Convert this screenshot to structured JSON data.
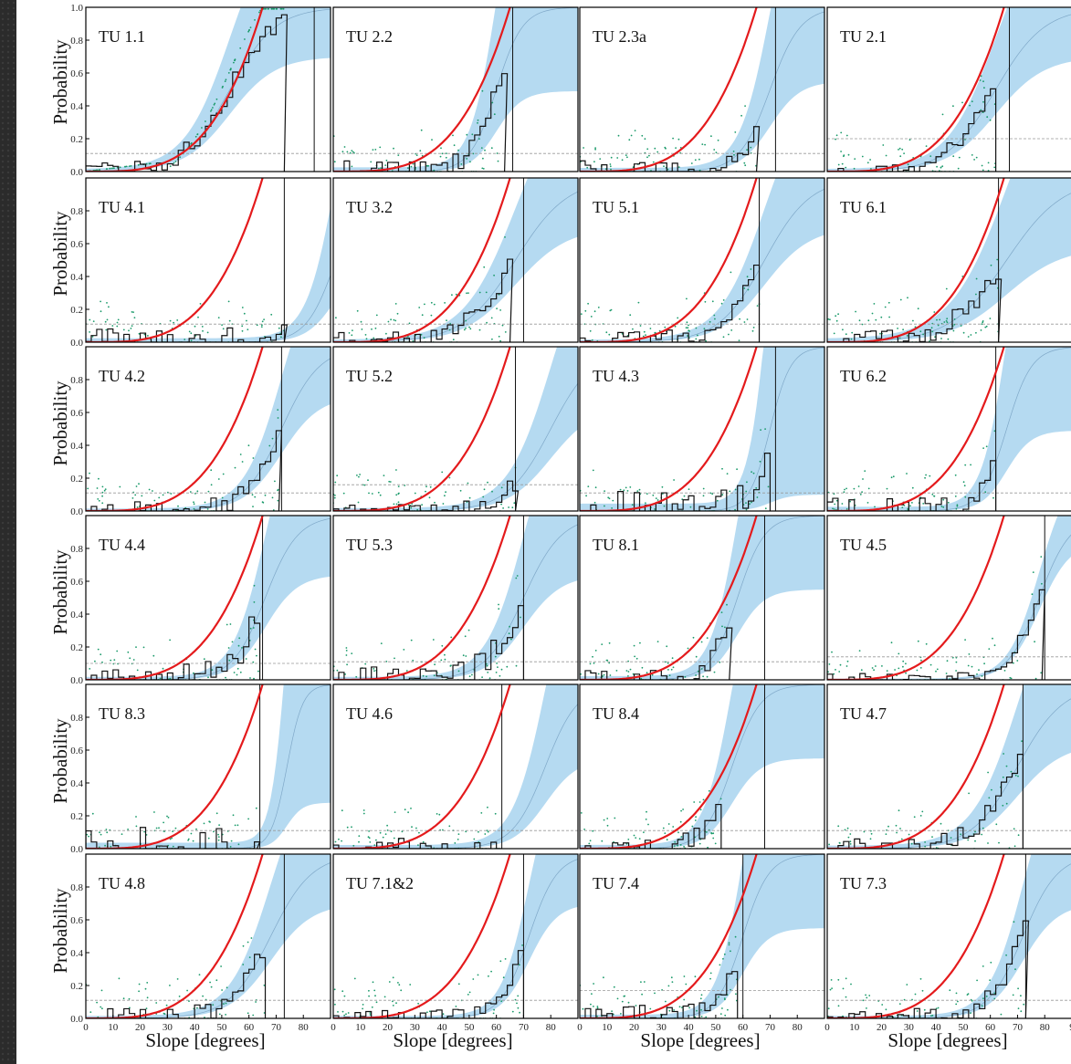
{
  "figure": {
    "ylabel": "Probability",
    "xlabel": "Slope [degrees]"
  },
  "colors": {
    "model_curve": "#e41a1c",
    "band": "#a8d4ef",
    "band_center": "#7fa8c8",
    "histogram": "#111111",
    "points": "#1a9a6a",
    "threshold": "#999999"
  },
  "chart_data": [
    {
      "type": "line",
      "title": "TU 1.1",
      "xlim": [
        0,
        90
      ],
      "ylim": [
        0,
        1
      ],
      "red_k": 3.6,
      "band": {
        "center": [
          53,
          4.2
        ],
        "spread": 0.1
      },
      "cutoff": 84,
      "threshold": 0.11,
      "hist_max": 73,
      "noise": 0.05
    },
    {
      "type": "line",
      "title": "TU 2.2",
      "xlim": [
        0,
        90
      ],
      "ylim": [
        0,
        1
      ],
      "red_k": 3.6,
      "band": {
        "center": [
          60,
          2.4
        ],
        "spread": 0.17
      },
      "cutoff": 66,
      "threshold": 0.11,
      "hist_max": 63,
      "noise": 0.07
    },
    {
      "type": "line",
      "title": "TU 2.3a",
      "xlim": [
        0,
        90
      ],
      "ylim": [
        0,
        1
      ],
      "red_k": 3.6,
      "band": {
        "center": [
          70,
          2.8
        ],
        "spread": 0.15
      },
      "cutoff": 72,
      "threshold": 0.11,
      "hist_max": 65,
      "noise": 0.08
    },
    {
      "type": "line",
      "title": "TU 2.1",
      "xlim": [
        0,
        90
      ],
      "ylim": [
        0,
        1
      ],
      "red_k": 3.6,
      "band": {
        "center": [
          62,
          4.5
        ],
        "spread": 0.1
      },
      "cutoff": 67,
      "threshold": 0.2,
      "hist_max": 62,
      "noise": 0.05
    },
    {
      "type": "line",
      "title": "TU 4.1",
      "xlim": [
        0,
        90
      ],
      "ylim": [
        0,
        1
      ],
      "red_k": 3.6,
      "band": {
        "center": [
          92,
          2.7
        ],
        "spread": 0.16
      },
      "cutoff": 73,
      "threshold": 0.11,
      "hist_max": 73,
      "noise": 0.09
    },
    {
      "type": "line",
      "title": "TU 3.2",
      "xlim": [
        0,
        90
      ],
      "ylim": [
        0,
        1
      ],
      "red_k": 3.6,
      "band": {
        "center": [
          67,
          4.8
        ],
        "spread": 0.1
      },
      "cutoff": 70,
      "threshold": 0.11,
      "hist_max": 65,
      "noise": 0.06
    },
    {
      "type": "line",
      "title": "TU 5.1",
      "xlim": [
        0,
        90
      ],
      "ylim": [
        0,
        1
      ],
      "red_k": 3.6,
      "band": {
        "center": [
          68,
          4.2
        ],
        "spread": 0.1
      },
      "cutoff": 66,
      "threshold": 0.11,
      "hist_max": 66,
      "noise": 0.06
    },
    {
      "type": "line",
      "title": "TU 6.1",
      "xlim": [
        0,
        90
      ],
      "ylim": [
        0,
        1
      ],
      "red_k": 3.6,
      "band": {
        "center": [
          66,
          5.2
        ],
        "spread": 0.14
      },
      "cutoff": 63,
      "threshold": 0.11,
      "hist_max": 63,
      "noise": 0.06
    },
    {
      "type": "line",
      "title": "TU 4.2",
      "xlim": [
        0,
        90
      ],
      "ylim": [
        0,
        1
      ],
      "red_k": 3.6,
      "band": {
        "center": [
          72,
          3.5
        ],
        "spread": 0.1
      },
      "cutoff": 72,
      "threshold": 0.11,
      "hist_max": 71,
      "noise": 0.06
    },
    {
      "type": "line",
      "title": "TU 5.2",
      "xlim": [
        0,
        90
      ],
      "ylim": [
        0,
        1
      ],
      "red_k": 3.6,
      "band": {
        "center": [
          80,
          4.0
        ],
        "spread": 0.12
      },
      "cutoff": 67,
      "threshold": 0.16,
      "hist_max": 67,
      "noise": 0.05
    },
    {
      "type": "line",
      "title": "TU 4.3",
      "xlim": [
        0,
        90
      ],
      "ylim": [
        0,
        1
      ],
      "red_k": 3.6,
      "band": {
        "center": [
          70,
          1.9
        ],
        "spread": 0.3
      },
      "cutoff": 72,
      "threshold": 0.11,
      "hist_max": 70,
      "noise": 0.12
    },
    {
      "type": "line",
      "title": "TU 6.2",
      "xlim": [
        0,
        90
      ],
      "ylim": [
        0,
        1
      ],
      "red_k": 3.6,
      "band": {
        "center": [
          66,
          2.3
        ],
        "spread": 0.17
      },
      "cutoff": 62,
      "threshold": 0.11,
      "hist_max": 62,
      "noise": 0.08
    },
    {
      "type": "line",
      "title": "TU 4.4",
      "xlim": [
        0,
        90
      ],
      "ylim": [
        0,
        1
      ],
      "red_k": 3.6,
      "band": {
        "center": [
          66,
          3.0
        ],
        "spread": 0.12
      },
      "cutoff": 65,
      "threshold": 0.1,
      "hist_max": 64,
      "noise": 0.09
    },
    {
      "type": "line",
      "title": "TU 5.3",
      "xlim": [
        0,
        90
      ],
      "ylim": [
        0,
        1
      ],
      "red_k": 3.6,
      "band": {
        "center": [
          70,
          3.5
        ],
        "spread": 0.12
      },
      "cutoff": 70,
      "threshold": 0.11,
      "hist_max": 70,
      "noise": 0.08
    },
    {
      "type": "line",
      "title": "TU 8.1",
      "xlim": [
        0,
        90
      ],
      "ylim": [
        0,
        1
      ],
      "red_k": 3.6,
      "band": {
        "center": [
          58,
          2.5
        ],
        "spread": 0.15
      },
      "cutoff": 68,
      "threshold": 0.11,
      "hist_max": 55,
      "noise": 0.06
    },
    {
      "type": "line",
      "title": "TU 4.5",
      "xlim": [
        0,
        90
      ],
      "ylim": [
        0,
        1
      ],
      "red_k": 3.6,
      "band": {
        "center": [
          78,
          2.9
        ],
        "spread": 0.05
      },
      "cutoff": 80,
      "threshold": 0.14,
      "hist_max": 79,
      "noise": 0.04
    },
    {
      "type": "line",
      "title": "TU 8.3",
      "xlim": [
        0,
        90
      ],
      "ylim": [
        0,
        1
      ],
      "red_k": 3.6,
      "band": {
        "center": [
          74,
          1.45
        ],
        "spread": 0.24
      },
      "cutoff": 64,
      "threshold": 0.11,
      "hist_max": 63,
      "noise": 0.13
    },
    {
      "type": "line",
      "title": "TU 4.6",
      "xlim": [
        0,
        90
      ],
      "ylim": [
        0,
        1
      ],
      "red_k": 3.6,
      "band": {
        "center": [
          78,
          3.0
        ],
        "spread": 0.15
      },
      "cutoff": 62,
      "threshold": 0.11,
      "hist_max": 62,
      "noise": 0.07
    },
    {
      "type": "line",
      "title": "TU 8.4",
      "xlim": [
        0,
        90
      ],
      "ylim": [
        0,
        1
      ],
      "red_k": 3.6,
      "band": {
        "center": [
          56,
          2.6
        ],
        "spread": 0.15
      },
      "cutoff": 68,
      "threshold": 0.11,
      "hist_max": 52,
      "noise": 0.06
    },
    {
      "type": "line",
      "title": "TU 4.7",
      "xlim": [
        0,
        90
      ],
      "ylim": [
        0,
        1
      ],
      "red_k": 3.6,
      "band": {
        "center": [
          70,
          4.2
        ],
        "spread": 0.12
      },
      "cutoff": 72,
      "threshold": 0.11,
      "hist_max": 72,
      "noise": 0.06
    },
    {
      "type": "line",
      "title": "TU 4.8",
      "xlim": [
        0,
        90
      ],
      "ylim": [
        0,
        1
      ],
      "red_k": 3.6,
      "band": {
        "center": [
          68,
          3.8
        ],
        "spread": 0.1
      },
      "cutoff": 73,
      "threshold": 0.11,
      "hist_max": 66,
      "noise": 0.07
    },
    {
      "type": "line",
      "title": "TU 7.1&2",
      "xlim": [
        0,
        90
      ],
      "ylim": [
        0,
        1
      ],
      "red_k": 3.6,
      "band": {
        "center": [
          72,
          2.6
        ],
        "spread": 0.1
      },
      "cutoff": 70,
      "threshold": 0.11,
      "hist_max": 70,
      "noise": 0.06
    },
    {
      "type": "line",
      "title": "TU 7.4",
      "xlim": [
        0,
        90
      ],
      "ylim": [
        0,
        1
      ],
      "red_k": 3.6,
      "band": {
        "center": [
          60,
          2.4
        ],
        "spread": 0.15
      },
      "cutoff": 60,
      "threshold": 0.17,
      "hist_max": 58,
      "noise": 0.08
    },
    {
      "type": "line",
      "title": "TU 7.3",
      "xlim": [
        0,
        90
      ],
      "ylim": [
        0,
        1
      ],
      "red_k": 3.6,
      "band": {
        "center": [
          72,
          3.2
        ],
        "spread": 0.1
      },
      "cutoff": 73,
      "threshold": 0.11,
      "hist_max": 73,
      "noise": 0.06
    }
  ],
  "x_ticks": [
    "0",
    "10",
    "20",
    "30",
    "40",
    "50",
    "60",
    "70",
    "80",
    "9"
  ],
  "y_ticks": [
    "0.0",
    "0.2",
    "0.4",
    "0.6",
    "0.8"
  ],
  "y_ticks_first": [
    "0.0",
    "0.2",
    "0.4",
    "0.6",
    "0.8",
    "1.0"
  ]
}
